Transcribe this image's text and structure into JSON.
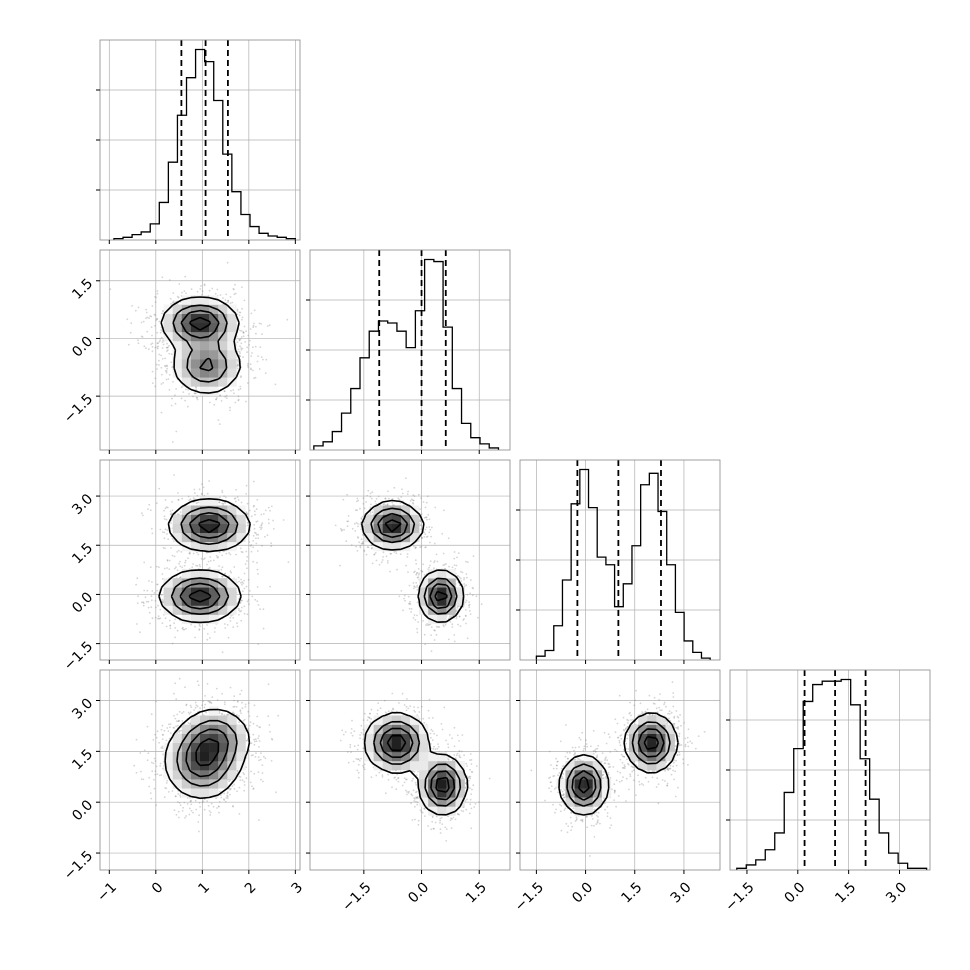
{
  "chart_data": {
    "type": "corner",
    "title": "",
    "params": [
      {
        "range": [
          -1.2,
          3.1
        ],
        "ticks": [
          -1,
          0,
          1,
          2,
          3
        ],
        "tick_labels": [
          "−1",
          "0",
          "1",
          "2",
          "3"
        ],
        "quantiles": [
          0.55,
          1.07,
          1.55
        ]
      },
      {
        "range": [
          -2.9,
          2.3
        ],
        "ticks": [
          -1.5,
          0.0,
          1.5
        ],
        "tick_labels": [
          "−1.5",
          "0.0",
          "1.5"
        ],
        "quantiles": [
          -1.1,
          0.0,
          0.63
        ]
      },
      {
        "range": [
          -2.0,
          4.1
        ],
        "ticks": [
          -1.5,
          0.0,
          1.5,
          3.0
        ],
        "tick_labels": [
          "−1.5",
          "0.0",
          "1.5",
          "3.0"
        ],
        "quantiles": [
          -0.25,
          1.0,
          2.3
        ]
      },
      {
        "range": [
          -2.0,
          3.9
        ],
        "ticks": [
          -1.5,
          0.0,
          1.5,
          3.0
        ],
        "tick_labels": [
          "−1.5",
          "0.0",
          "1.5",
          "3.0"
        ],
        "quantiles": [
          0.2,
          1.1,
          2.0
        ]
      }
    ],
    "histograms": [
      {
        "bins": 20,
        "range": [
          -0.9,
          3.0
        ],
        "counts": [
          1,
          2,
          4,
          6,
          12,
          28,
          58,
          93,
          121,
          142,
          133,
          104,
          64,
          36,
          19,
          10,
          5,
          3,
          2,
          1
        ]
      },
      {
        "bins": 20,
        "range": [
          -2.8,
          2.0
        ],
        "counts": [
          2,
          4,
          9,
          18,
          30,
          45,
          58,
          63,
          62,
          58,
          50,
          68,
          93,
          92,
          60,
          30,
          13,
          6,
          3,
          1
        ]
      },
      {
        "bins": 20,
        "range": [
          -1.5,
          3.8
        ],
        "counts": [
          2,
          5,
          18,
          42,
          82,
          100,
          80,
          54,
          50,
          28,
          40,
          60,
          92,
          98,
          78,
          50,
          25,
          10,
          4,
          1
        ]
      },
      {
        "bins": 20,
        "range": [
          -1.8,
          3.8
        ],
        "counts": [
          1,
          3,
          6,
          12,
          22,
          46,
          72,
          100,
          110,
          112,
          112,
          113,
          98,
          66,
          42,
          22,
          10,
          4,
          1,
          1
        ]
      }
    ],
    "pairs": [
      {
        "row": 1,
        "col": 0,
        "modes": [
          {
            "mean": [
              0.95,
              0.4
            ],
            "sd": [
              0.4,
              0.32
            ],
            "w": 0.6
          },
          {
            "mean": [
              1.1,
              -0.7
            ],
            "sd": [
              0.38,
              0.38
            ],
            "w": 0.4
          }
        ]
      },
      {
        "row": 2,
        "col": 0,
        "modes": [
          {
            "mean": [
              1.15,
              2.1
            ],
            "sd": [
              0.42,
              0.38
            ],
            "w": 0.5
          },
          {
            "mean": [
              0.95,
              -0.05
            ],
            "sd": [
              0.42,
              0.38
            ],
            "w": 0.5
          }
        ]
      },
      {
        "row": 2,
        "col": 1,
        "modes": [
          {
            "mean": [
              -0.75,
              2.1
            ],
            "sd": [
              0.38,
              0.35
            ],
            "w": 0.5
          },
          {
            "mean": [
              0.5,
              -0.05
            ],
            "sd": [
              0.28,
              0.38
            ],
            "w": 0.5
          }
        ]
      },
      {
        "row": 3,
        "col": 0,
        "modes": [
          {
            "mean": [
              1.0,
              1.2
            ],
            "sd": [
              0.4,
              0.55
            ],
            "w": 0.6
          },
          {
            "mean": [
              1.3,
              1.9
            ],
            "sd": [
              0.38,
              0.45
            ],
            "w": 0.4
          }
        ]
      },
      {
        "row": 3,
        "col": 1,
        "modes": [
          {
            "mean": [
              -0.65,
              1.75
            ],
            "sd": [
              0.4,
              0.42
            ],
            "w": 0.5
          },
          {
            "mean": [
              0.55,
              0.5
            ],
            "sd": [
              0.3,
              0.42
            ],
            "w": 0.5
          }
        ]
      },
      {
        "row": 3,
        "col": 2,
        "modes": [
          {
            "mean": [
              -0.05,
              0.5
            ],
            "sd": [
              0.35,
              0.42
            ],
            "w": 0.5
          },
          {
            "mean": [
              2.0,
              1.75
            ],
            "sd": [
              0.38,
              0.42
            ],
            "w": 0.5
          }
        ]
      }
    ],
    "grid": true,
    "colors": {
      "line": "#000000",
      "scatter": "#888888",
      "grid": "#b0b0b0"
    }
  }
}
